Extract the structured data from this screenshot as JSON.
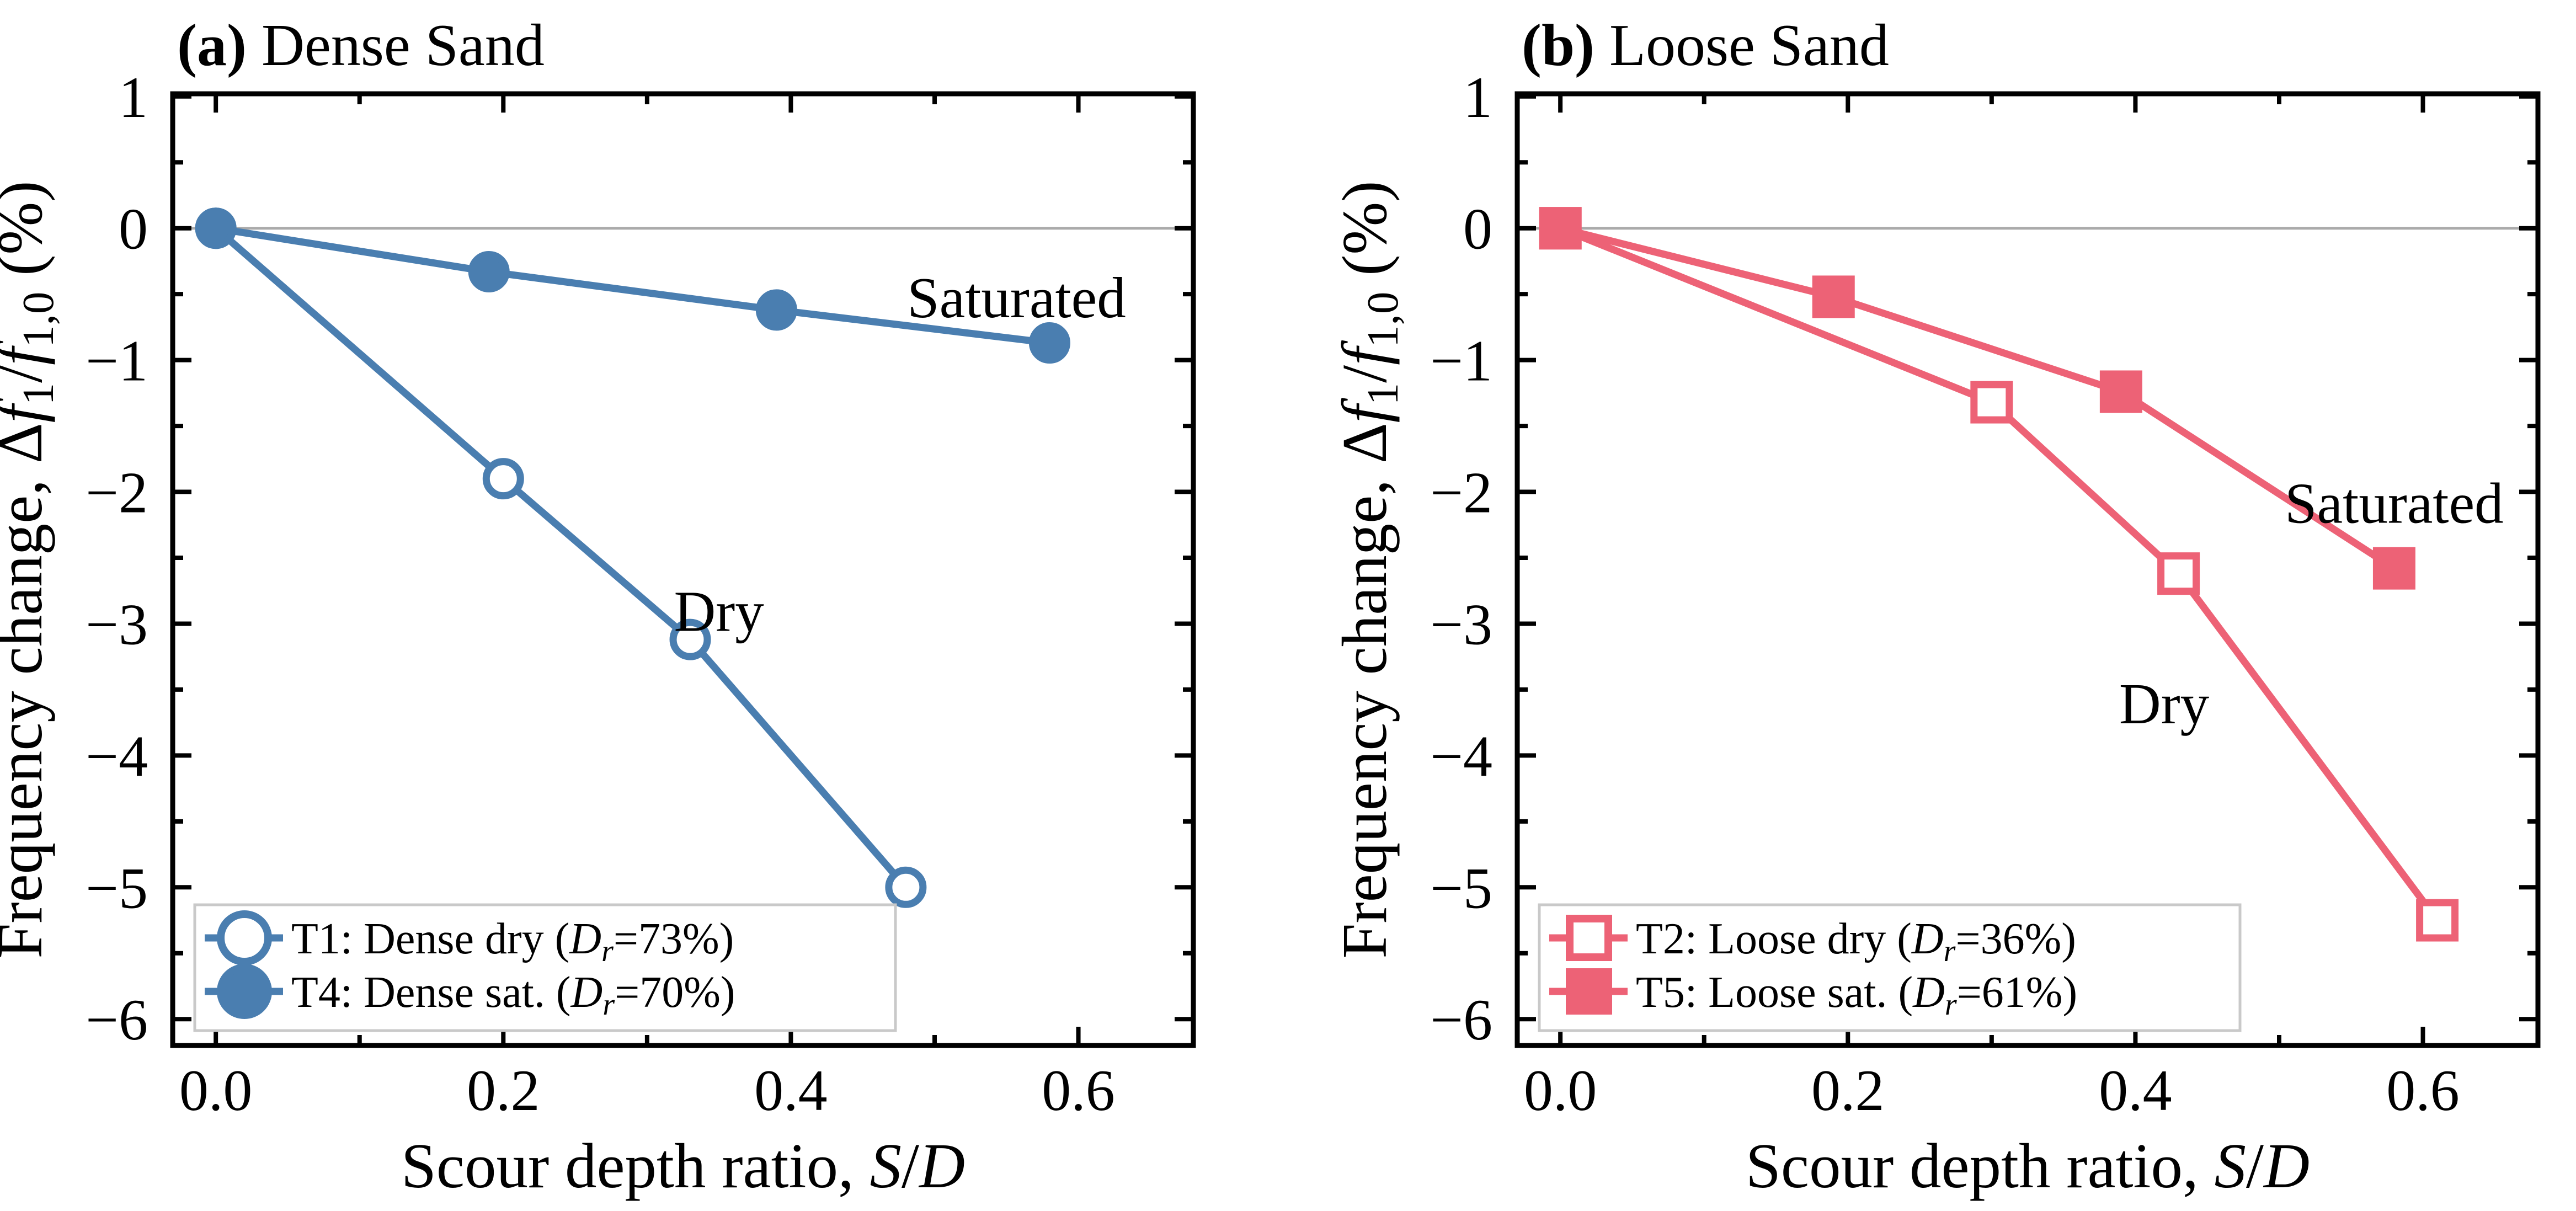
{
  "figure": {
    "background": "#ffffff",
    "description": "Two-panel line chart of frequency change versus scour depth ratio"
  },
  "colors": {
    "dense_blue": "#4A7EB0",
    "loose_red": "#ED6276",
    "zero_line": "#AAAAAA",
    "legend_border": "#C9C9C9",
    "axis_black": "#000000"
  },
  "chart_data": [
    {
      "type": "line",
      "panel": "a",
      "title": "(a) Dense Sand",
      "title_rich": [
        {
          "t": "(a)",
          "b": true
        },
        {
          "t": " Dense Sand"
        }
      ],
      "xlabel": "Scour depth ratio, S/D",
      "xlabel_rich": [
        {
          "t": "Scour depth ratio, "
        },
        {
          "t": "S",
          "i": true
        },
        {
          "t": "/"
        },
        {
          "t": "D",
          "i": true
        }
      ],
      "ylabel": "Frequency change, Δf1/f1,0 (%)",
      "ylabel_rich": [
        {
          "t": "Frequency change, Δ"
        },
        {
          "t": "f",
          "i": true
        },
        {
          "t": "1",
          "s": true
        },
        {
          "t": "/"
        },
        {
          "t": "f",
          "i": true
        },
        {
          "t": "1,0",
          "s": true
        },
        {
          "t": " (%)"
        }
      ],
      "xlim": [
        -0.03,
        0.68
      ],
      "ylim": [
        -6.2,
        1.02
      ],
      "xticks": [
        0,
        0.2,
        0.4,
        0.6
      ],
      "xticklabels": [
        "0.0",
        "0.2",
        "0.4",
        "0.6"
      ],
      "xticks_minor": [
        0.1,
        0.3,
        0.5
      ],
      "yticks": [
        1,
        0,
        -1,
        -2,
        -3,
        -4,
        -5,
        -6
      ],
      "yticklabels": [
        "1",
        "0",
        "−1",
        "−2",
        "−3",
        "−4",
        "−5",
        "−6"
      ],
      "yticks_minor": [
        0.5,
        -0.5,
        -1.5,
        -2.5,
        -3.5,
        -4.5,
        -5.5
      ],
      "zero_line": true,
      "grid": false,
      "legend_position": "lower left",
      "color_key": "dense_blue",
      "series": [
        {
          "name": "T1: Dense dry (Dr=73%)",
          "name_rich": [
            {
              "t": "T1: Dense dry ("
            },
            {
              "t": "D",
              "i": true
            },
            {
              "t": "r",
              "i": true,
              "s": true
            },
            {
              "t": "=73%)"
            }
          ],
          "marker": "circle_open",
          "x": [
            0,
            0.2,
            0.33,
            0.48
          ],
          "y": [
            0,
            -1.9,
            -3.12,
            -5.0
          ]
        },
        {
          "name": "T4: Dense sat. (Dr=70%)",
          "name_rich": [
            {
              "t": "T4: Dense sat. ("
            },
            {
              "t": "D",
              "i": true
            },
            {
              "t": "r",
              "i": true,
              "s": true
            },
            {
              "t": "=70%)"
            }
          ],
          "marker": "circle_filled",
          "x": [
            0,
            0.19,
            0.39,
            0.58
          ],
          "y": [
            0,
            -0.33,
            -0.62,
            -0.87
          ]
        }
      ],
      "annotations": [
        {
          "text": "Saturated",
          "x": 0.557,
          "y": -0.52
        },
        {
          "text": "Dry",
          "x": 0.35,
          "y": -2.9
        }
      ]
    },
    {
      "type": "line",
      "panel": "b",
      "title": "(b) Loose Sand",
      "title_rich": [
        {
          "t": "(b)",
          "b": true
        },
        {
          "t": " Loose Sand"
        }
      ],
      "xlabel": "Scour depth ratio, S/D",
      "xlabel_rich": [
        {
          "t": "Scour depth ratio, "
        },
        {
          "t": "S",
          "i": true
        },
        {
          "t": "/"
        },
        {
          "t": "D",
          "i": true
        }
      ],
      "ylabel": "Frequency change, Δf1/f1,0 (%)",
      "ylabel_rich": [
        {
          "t": "Frequency change, Δ"
        },
        {
          "t": "f",
          "i": true
        },
        {
          "t": "1",
          "s": true
        },
        {
          "t": "/"
        },
        {
          "t": "f",
          "i": true
        },
        {
          "t": "1,0",
          "s": true
        },
        {
          "t": " (%)"
        }
      ],
      "xlim": [
        -0.03,
        0.68
      ],
      "ylim": [
        -6.2,
        1.02
      ],
      "xticks": [
        0,
        0.2,
        0.4,
        0.6
      ],
      "xticklabels": [
        "0.0",
        "0.2",
        "0.4",
        "0.6"
      ],
      "xticks_minor": [
        0.1,
        0.3,
        0.5
      ],
      "yticks": [
        1,
        0,
        -1,
        -2,
        -3,
        -4,
        -5,
        -6
      ],
      "yticklabels": [
        "1",
        "0",
        "−1",
        "−2",
        "−3",
        "−4",
        "−5",
        "−6"
      ],
      "yticks_minor": [
        0.5,
        -0.5,
        -1.5,
        -2.5,
        -3.5,
        -4.5,
        -5.5
      ],
      "zero_line": true,
      "grid": false,
      "legend_position": "lower left",
      "color_key": "loose_red",
      "series": [
        {
          "name": "T2: Loose dry (Dr=36%)",
          "name_rich": [
            {
              "t": "T2: Loose dry ("
            },
            {
              "t": "D",
              "i": true
            },
            {
              "t": "r",
              "i": true,
              "s": true
            },
            {
              "t": "=36%)"
            }
          ],
          "marker": "square_open",
          "x": [
            0,
            0.3,
            0.43,
            0.61
          ],
          "y": [
            0,
            -1.32,
            -2.62,
            -5.25
          ]
        },
        {
          "name": "T5: Loose sat. (Dr=61%)",
          "name_rich": [
            {
              "t": "T5: Loose sat. ("
            },
            {
              "t": "D",
              "i": true
            },
            {
              "t": "r",
              "i": true,
              "s": true
            },
            {
              "t": "=61%)"
            }
          ],
          "marker": "square_filled",
          "x": [
            0,
            0.19,
            0.39,
            0.58
          ],
          "y": [
            0,
            -0.52,
            -1.24,
            -2.58
          ]
        }
      ],
      "annotations": [
        {
          "text": "Saturated",
          "x": 0.58,
          "y": -2.08
        },
        {
          "text": "Dry",
          "x": 0.42,
          "y": -3.6
        }
      ]
    }
  ]
}
